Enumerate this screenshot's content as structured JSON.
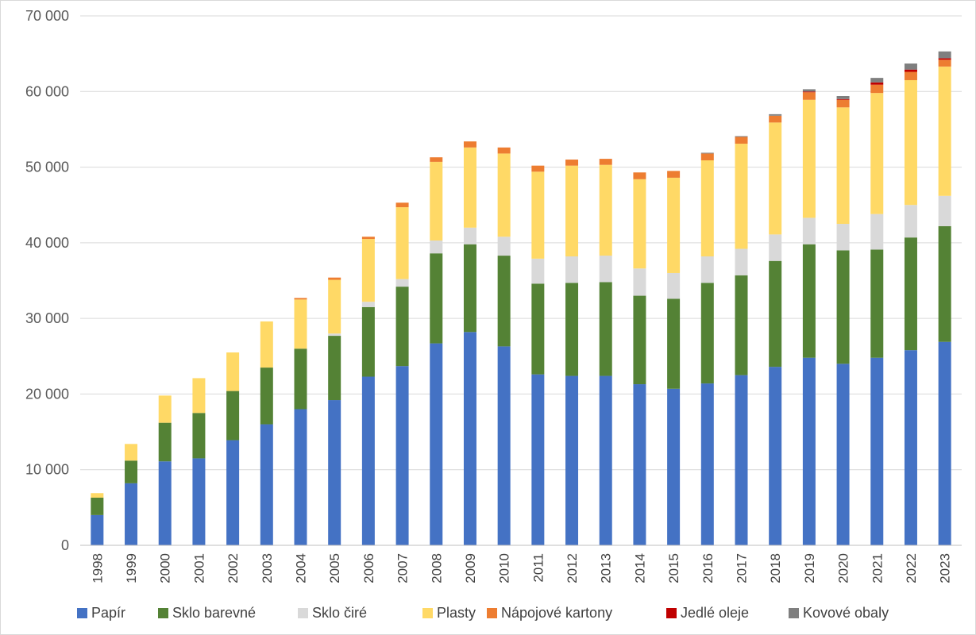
{
  "chart_data": {
    "type": "bar",
    "stacked": true,
    "title": "",
    "xlabel": "",
    "ylabel": "",
    "ylim": [
      0,
      70000
    ],
    "y_ticks": [
      0,
      10000,
      20000,
      30000,
      40000,
      50000,
      60000,
      70000
    ],
    "y_tick_labels": [
      "0",
      "10 000",
      "20 000",
      "30 000",
      "40 000",
      "50 000",
      "60 000",
      "70 000"
    ],
    "grid": true,
    "legend_position": "bottom",
    "categories": [
      "1998",
      "1999",
      "2000",
      "2001",
      "2002",
      "2003",
      "2004",
      "2005",
      "2006",
      "2007",
      "2008",
      "2009",
      "2010",
      "2011",
      "2012",
      "2013",
      "2014",
      "2015",
      "2016",
      "2017",
      "2018",
      "2019",
      "2020",
      "2021",
      "2022",
      "2023"
    ],
    "series": [
      {
        "name": "Papír",
        "color": "#4472c4",
        "values": [
          4000,
          8200,
          11100,
          11500,
          13900,
          16000,
          18000,
          19200,
          22300,
          23700,
          26700,
          28200,
          26300,
          22600,
          22400,
          22400,
          21300,
          20700,
          21400,
          22500,
          23600,
          24800,
          24000,
          24800,
          25800,
          26900
        ]
      },
      {
        "name": "Sklo barevné",
        "color": "#548235",
        "values": [
          2300,
          3000,
          5100,
          6000,
          6500,
          7500,
          8000,
          8500,
          9200,
          10500,
          11900,
          11600,
          12000,
          12000,
          12300,
          12400,
          11700,
          11900,
          13300,
          13200,
          14000,
          15000,
          15000,
          14300,
          14900,
          15300
        ]
      },
      {
        "name": "Sklo čiré",
        "color": "#d9d9d9",
        "values": [
          0,
          0,
          0,
          0,
          0,
          0,
          0,
          300,
          700,
          1000,
          1700,
          2200,
          2500,
          3300,
          3500,
          3500,
          3600,
          3400,
          3500,
          3500,
          3500,
          3500,
          3500,
          4700,
          4300,
          4000
        ]
      },
      {
        "name": "Plasty",
        "color": "#ffd966",
        "values": [
          600,
          2200,
          3600,
          4600,
          5100,
          6100,
          6500,
          7100,
          8300,
          9500,
          10400,
          10600,
          11000,
          11500,
          12000,
          12000,
          11800,
          12600,
          12700,
          13900,
          14800,
          15600,
          15400,
          16000,
          16500,
          17100
        ]
      },
      {
        "name": "Nápojové kartony",
        "color": "#ed7d31",
        "values": [
          0,
          0,
          0,
          0,
          0,
          0,
          200,
          300,
          300,
          600,
          600,
          800,
          800,
          800,
          800,
          800,
          900,
          900,
          900,
          900,
          900,
          1000,
          1000,
          1100,
          1100,
          900
        ]
      },
      {
        "name": "Jedlé oleje",
        "color": "#c00000",
        "values": [
          0,
          0,
          0,
          0,
          0,
          0,
          0,
          0,
          0,
          0,
          0,
          0,
          0,
          0,
          0,
          0,
          0,
          0,
          0,
          0,
          0,
          100,
          100,
          300,
          300,
          200
        ]
      },
      {
        "name": "Kovové obaly",
        "color": "#7f7f7f",
        "values": [
          0,
          0,
          0,
          0,
          0,
          0,
          0,
          0,
          0,
          0,
          0,
          0,
          0,
          0,
          0,
          0,
          0,
          0,
          100,
          100,
          200,
          300,
          400,
          600,
          800,
          900
        ]
      }
    ]
  }
}
